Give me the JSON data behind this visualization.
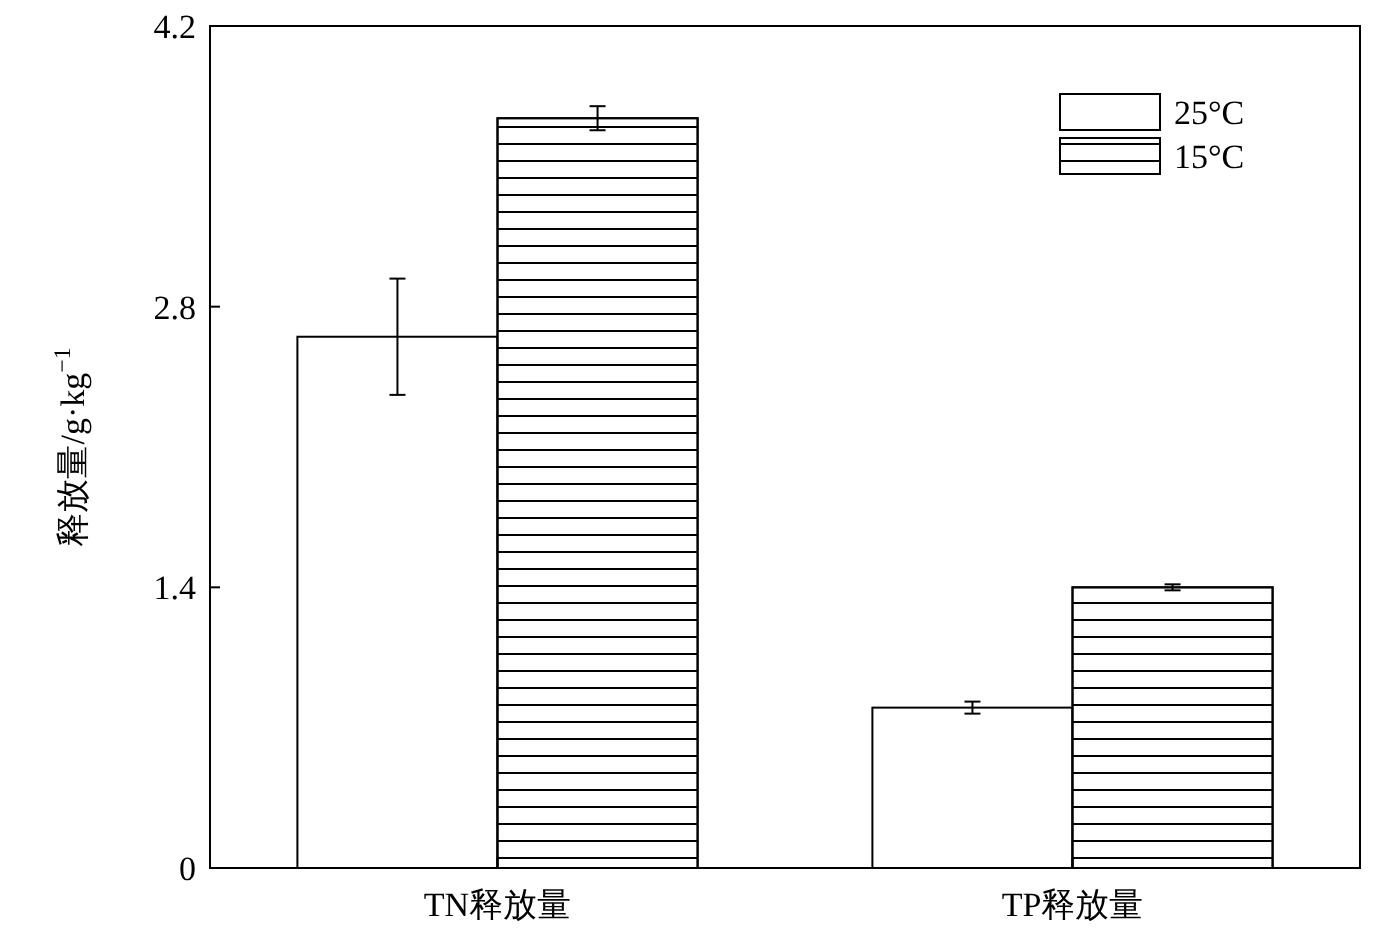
{
  "chart_data": {
    "type": "bar",
    "ylabel": "释放量/g·kg$^{−1}$",
    "categories": [
      "TN释放量",
      "TP释放量"
    ],
    "series": [
      {
        "name": "25°C",
        "color": "#ffffff",
        "values": [
          2.65,
          0.8
        ],
        "errors": [
          0.29,
          0.03
        ]
      },
      {
        "name": "15°C",
        "color": "#ffffff",
        "values": [
          3.74,
          1.4
        ],
        "errors": [
          0.06,
          0.015
        ]
      }
    ],
    "ylim": [
      0,
      4.2
    ],
    "yticks": [
      0,
      1.4,
      2.8,
      4.2
    ],
    "legend": "top right",
    "grid": false
  }
}
